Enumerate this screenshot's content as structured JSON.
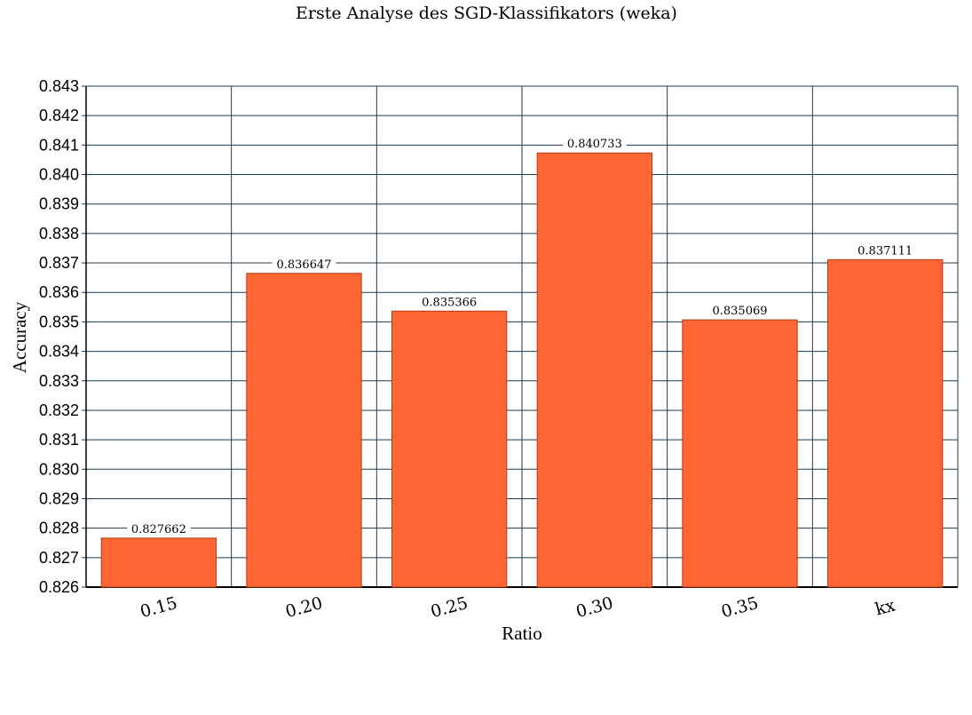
{
  "chart_data": {
    "type": "bar",
    "title": "Erste Analyse des SGD-Klassifikators (weka)",
    "xlabel": "Ratio",
    "ylabel": "Accuracy",
    "categories": [
      "0.15",
      "0.20",
      "0.25",
      "0.30",
      "0.35",
      "kx"
    ],
    "values": [
      0.827662,
      0.836647,
      0.835366,
      0.840733,
      0.835069,
      0.837111
    ],
    "data_labels": [
      "0.827662",
      "0.836647",
      "0.835366",
      "0.840733",
      "0.835069",
      "0.837111"
    ],
    "yticks": [
      "0.826",
      "0.827",
      "0.828",
      "0.829",
      "0.830",
      "0.831",
      "0.832",
      "0.833",
      "0.834",
      "0.835",
      "0.836",
      "0.837",
      "0.838",
      "0.839",
      "0.840",
      "0.841",
      "0.842",
      "0.843"
    ],
    "ylim": [
      0.826,
      0.843
    ],
    "grid": true,
    "legend": "none",
    "colors": {
      "bar": "#ff6633",
      "bar_edge": "#b03a14",
      "grid": "#1f3a4d"
    }
  }
}
